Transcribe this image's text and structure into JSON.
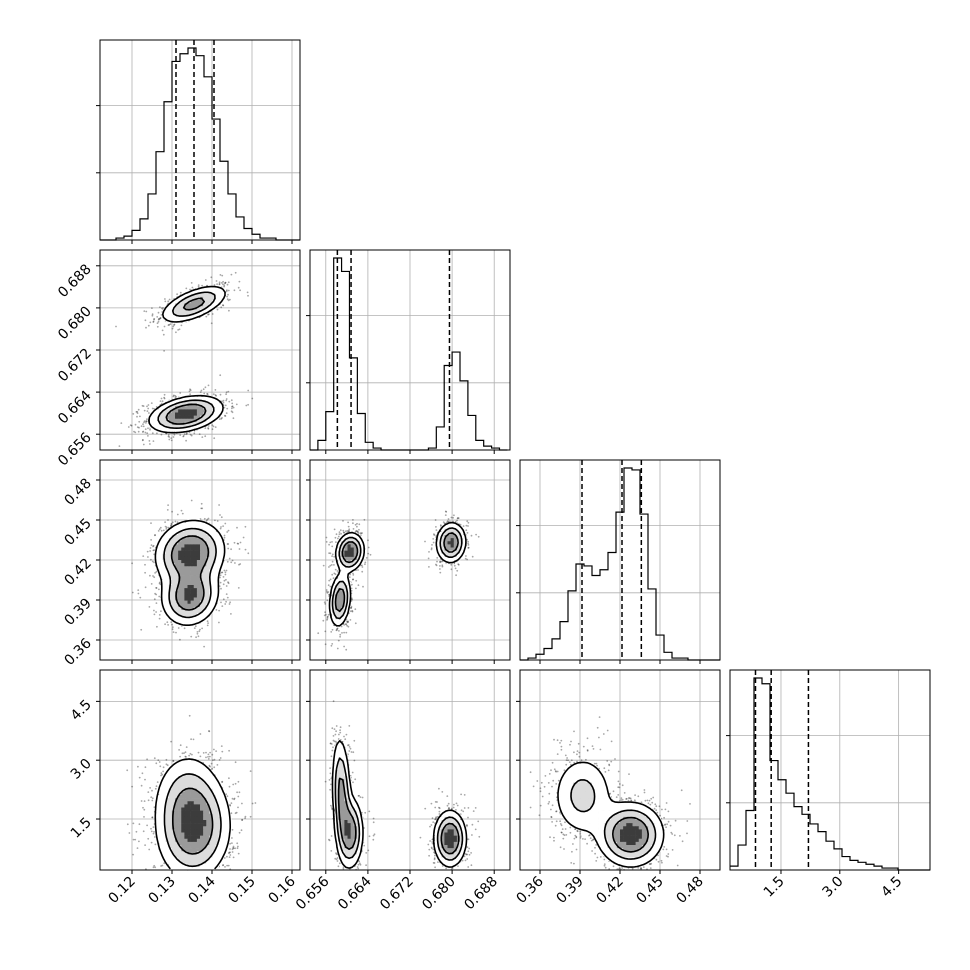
{
  "chart_data": {
    "type": "corner",
    "grid": true,
    "parameters": [
      {
        "range": [
          0.112,
          0.162
        ],
        "ticks": [
          0.12,
          0.13,
          0.14,
          0.15,
          0.16
        ],
        "tick_labels": [
          "0.12",
          "0.13",
          "0.14",
          "0.15",
          "0.16"
        ]
      },
      {
        "range": [
          0.653,
          0.691
        ],
        "ticks": [
          0.656,
          0.664,
          0.672,
          0.68,
          0.688
        ],
        "tick_labels": [
          "0.656",
          "0.664",
          "0.672",
          "0.680",
          "0.688"
        ]
      },
      {
        "range": [
          0.345,
          0.495
        ],
        "ticks": [
          0.36,
          0.39,
          0.42,
          0.45,
          0.48
        ],
        "tick_labels": [
          "0.36",
          "0.39",
          "0.42",
          "0.45",
          "0.48"
        ]
      },
      {
        "range": [
          0.2,
          5.3
        ],
        "ticks": [
          1.5,
          3.0,
          4.5
        ],
        "tick_labels": [
          "1.5",
          "3.0",
          "4.5"
        ]
      }
    ],
    "marginals": [
      {
        "quantiles": [
          0.131,
          0.1355,
          0.1405
        ],
        "bin_edges": [
          0.112,
          0.114,
          0.116,
          0.118,
          0.12,
          0.122,
          0.124,
          0.126,
          0.128,
          0.13,
          0.132,
          0.134,
          0.136,
          0.138,
          0.14,
          0.142,
          0.144,
          0.146,
          0.148,
          0.15,
          0.152,
          0.154,
          0.156,
          0.158,
          0.16,
          0.162
        ],
        "counts": [
          0,
          0,
          1,
          2,
          5,
          11,
          24,
          46,
          72,
          93,
          97,
          100,
          96,
          85,
          63,
          41,
          24,
          12,
          6,
          3,
          1,
          1,
          0,
          0,
          0
        ]
      },
      {
        "quantiles": [
          0.6582,
          0.6608,
          0.6795
        ],
        "bin_edges": [
          0.653,
          0.6545,
          0.656,
          0.6575,
          0.659,
          0.6605,
          0.662,
          0.6635,
          0.665,
          0.6665,
          0.668,
          0.6695,
          0.671,
          0.6725,
          0.674,
          0.6755,
          0.677,
          0.6785,
          0.68,
          0.6815,
          0.683,
          0.6845,
          0.686,
          0.6875,
          0.689,
          0.6905
        ],
        "counts": [
          0,
          5,
          20,
          100,
          93,
          48,
          19,
          4,
          1,
          0,
          0,
          0,
          0,
          0,
          0,
          1,
          12,
          44,
          51,
          36,
          18,
          5,
          2,
          1,
          0
        ]
      },
      {
        "quantiles": [
          0.3915,
          0.4215,
          0.436
        ],
        "bin_edges": [
          0.345,
          0.351,
          0.357,
          0.363,
          0.369,
          0.375,
          0.381,
          0.387,
          0.393,
          0.399,
          0.405,
          0.411,
          0.417,
          0.423,
          0.429,
          0.435,
          0.441,
          0.447,
          0.453,
          0.459,
          0.465,
          0.471,
          0.477,
          0.483,
          0.489,
          0.495
        ],
        "counts": [
          0,
          1,
          3,
          6,
          11,
          20,
          36,
          50,
          49,
          44,
          47,
          56,
          77,
          100,
          99,
          76,
          37,
          13,
          4,
          1,
          1,
          0,
          0,
          0,
          0
        ]
      },
      {
        "quantiles": [
          0.85,
          1.25,
          2.2
        ],
        "bin_edges": [
          0.2,
          0.404,
          0.608,
          0.812,
          1.016,
          1.22,
          1.424,
          1.628,
          1.832,
          2.036,
          2.24,
          2.444,
          2.648,
          2.852,
          3.056,
          3.26,
          3.464,
          3.668,
          3.872,
          4.076,
          4.28,
          4.484,
          4.688,
          4.892,
          5.096,
          5.3
        ],
        "counts": [
          2,
          13,
          31,
          100,
          97,
          57,
          47,
          40,
          33,
          29,
          24,
          20,
          15,
          11,
          7,
          5,
          4,
          3,
          2,
          1,
          1,
          0,
          0,
          0,
          0
        ]
      }
    ],
    "joint_clusters": [
      {
        "pair": [
          1,
          0
        ],
        "center": [
          0.1355,
          0.6807
        ],
        "sigma": [
          0.0042,
          0.0018
        ],
        "rho": 0.6,
        "weight": 0.36
      },
      {
        "pair": [
          1,
          0
        ],
        "center": [
          0.1335,
          0.6598
        ],
        "sigma": [
          0.0045,
          0.0017
        ],
        "rho": 0.35,
        "weight": 0.64
      },
      {
        "pair": [
          2,
          0
        ],
        "center": [
          0.1345,
          0.425
        ],
        "sigma": [
          0.0042,
          0.012
        ],
        "rho": 0.1,
        "weight": 0.6
      },
      {
        "pair": [
          2,
          0
        ],
        "center": [
          0.1345,
          0.393
        ],
        "sigma": [
          0.0035,
          0.011
        ],
        "rho": 0.1,
        "weight": 0.4
      },
      {
        "pair": [
          2,
          1
        ],
        "center": [
          0.6606,
          0.426
        ],
        "sigma": [
          0.0013,
          0.007
        ],
        "rho": 0.1,
        "weight": 0.35
      },
      {
        "pair": [
          2,
          1
        ],
        "center": [
          0.6587,
          0.39
        ],
        "sigma": [
          0.001,
          0.01
        ],
        "rho": 0.2,
        "weight": 0.3
      },
      {
        "pair": [
          2,
          1
        ],
        "center": [
          0.6798,
          0.433
        ],
        "sigma": [
          0.0014,
          0.0075
        ],
        "rho": 0.05,
        "weight": 0.35
      },
      {
        "pair": [
          3,
          0
        ],
        "center": [
          0.1355,
          1.25
        ],
        "sigma": [
          0.0045,
          0.65
        ],
        "rho": 0.05,
        "weight": 0.75
      },
      {
        "pair": [
          3,
          0
        ],
        "center": [
          0.1335,
          2.1
        ],
        "sigma": [
          0.0042,
          0.6
        ],
        "rho": 0.05,
        "weight": 0.25
      },
      {
        "pair": [
          3,
          1
        ],
        "center": [
          0.659,
          2.1
        ],
        "sigma": [
          0.0009,
          0.75
        ],
        "rho": -0.2,
        "weight": 0.32
      },
      {
        "pair": [
          3,
          1
        ],
        "center": [
          0.6607,
          1.15
        ],
        "sigma": [
          0.0012,
          0.45
        ],
        "rho": 0.0,
        "weight": 0.3
      },
      {
        "pair": [
          3,
          1
        ],
        "center": [
          0.6796,
          1.0
        ],
        "sigma": [
          0.0015,
          0.35
        ],
        "rho": 0.0,
        "weight": 0.38
      },
      {
        "pair": [
          3,
          2
        ],
        "center": [
          0.392,
          2.1
        ],
        "sigma": [
          0.012,
          0.55
        ],
        "rho": 0.0,
        "weight": 0.35
      },
      {
        "pair": [
          3,
          2
        ],
        "center": [
          0.428,
          1.1
        ],
        "sigma": [
          0.012,
          0.4
        ],
        "rho": 0.0,
        "weight": 0.65
      }
    ]
  }
}
